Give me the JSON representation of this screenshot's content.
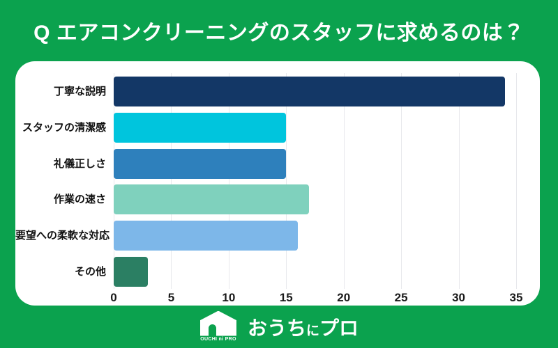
{
  "header": {
    "title": "Q エアコンクリーニングのスタッフに求めるのは？"
  },
  "chart_data": {
    "type": "bar",
    "orientation": "horizontal",
    "title": "Q エアコンクリーニングのスタッフに求めるのは？",
    "categories": [
      "丁寧な説明",
      "スタッフの清潔感",
      "礼儀正しさ",
      "作業の速さ",
      "要望への柔軟な対応",
      "その他"
    ],
    "values": [
      34,
      15,
      15,
      17,
      16,
      3
    ],
    "bar_colors": [
      "#133766",
      "#00c5dd",
      "#2e80bc",
      "#7fd1bd",
      "#7db7e9",
      "#2b7f63"
    ],
    "xlabel": "",
    "ylabel": "",
    "xlim": [
      0,
      35
    ],
    "x_ticks": [
      0,
      5,
      10,
      15,
      20,
      25,
      30,
      35
    ],
    "grid": "vertical gridlines at each x tick",
    "legend": "none"
  },
  "footer": {
    "logo_icon_text": "OUCHI ni PRO",
    "brand": {
      "part1": "おうち",
      "part2": "に",
      "part3": "プロ"
    }
  },
  "colors": {
    "background_green": "#0ba24e",
    "card_background": "#ffffff",
    "grid_line": "#e7e8ec",
    "title_text": "#ffffff",
    "label_text": "#111111"
  }
}
